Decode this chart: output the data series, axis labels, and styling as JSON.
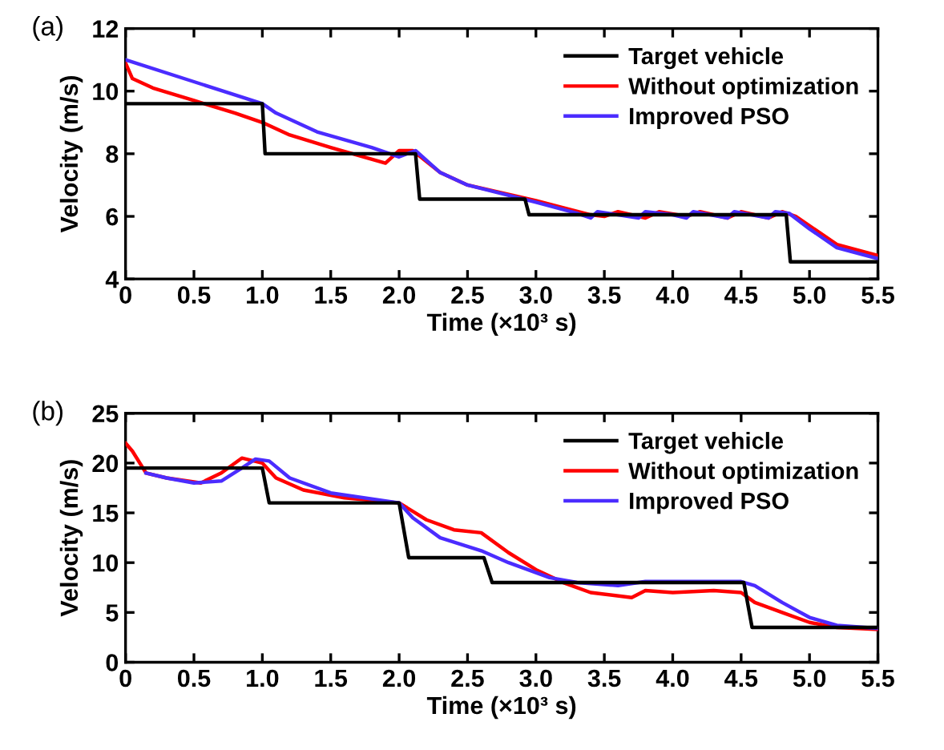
{
  "chart_data": [
    {
      "type": "line",
      "annotations": [
        "(a)"
      ],
      "xlabel": "Time (×10³ s)",
      "ylabel": "Velocity (m/s)",
      "xlim": [
        0,
        5.5
      ],
      "ylim": [
        4,
        12
      ],
      "xticks": [
        0,
        0.5,
        {
          "value": 1,
          "label": "1.0"
        },
        1.5,
        {
          "value": 2,
          "label": "2.0"
        },
        2.5,
        {
          "value": 3,
          "label": "3.0"
        },
        3.5,
        {
          "value": 4,
          "label": "4.0"
        },
        4.5,
        {
          "value": 5,
          "label": "5.0"
        },
        5.5
      ],
      "yticks": [
        4,
        6,
        8,
        10,
        12
      ],
      "grid": false,
      "legend": "top right",
      "series": [
        {
          "name": "Target vehicle",
          "color": "#000000",
          "x": [
            0,
            1.0,
            1.02,
            2.12,
            2.15,
            2.92,
            2.95,
            4.83,
            4.86,
            5.5
          ],
          "values": [
            9.6,
            9.6,
            8.0,
            8.0,
            6.55,
            6.55,
            6.05,
            6.05,
            4.55,
            4.55
          ]
        },
        {
          "name": "Without optimization",
          "color": "#ff0000",
          "x": [
            0,
            0.05,
            0.2,
            0.5,
            0.8,
            1.0,
            1.2,
            1.5,
            1.9,
            2.0,
            2.1,
            2.3,
            2.5,
            3.0,
            3.4,
            3.5,
            3.6,
            3.8,
            3.9,
            4.1,
            4.2,
            4.4,
            4.5,
            4.7,
            4.8,
            4.9,
            5.2,
            5.5
          ],
          "values": [
            10.9,
            10.4,
            10.1,
            9.7,
            9.3,
            9.0,
            8.6,
            8.2,
            7.7,
            8.1,
            8.1,
            7.4,
            7.0,
            6.5,
            6.05,
            6.0,
            6.15,
            5.95,
            6.15,
            6.0,
            6.15,
            5.95,
            6.15,
            5.95,
            6.15,
            6.0,
            5.1,
            4.75
          ]
        },
        {
          "name": "Improved PSO",
          "color": "#4b2cff",
          "x": [
            0,
            0.5,
            1.0,
            1.1,
            1.4,
            1.8,
            2.0,
            2.12,
            2.3,
            2.5,
            3.0,
            3.3,
            3.4,
            3.45,
            3.6,
            3.75,
            3.8,
            4.0,
            4.1,
            4.15,
            4.4,
            4.45,
            4.7,
            4.75,
            4.85,
            5.0,
            5.2,
            5.5
          ],
          "values": [
            11.0,
            10.3,
            9.6,
            9.3,
            8.7,
            8.2,
            7.9,
            8.1,
            7.4,
            7.0,
            6.45,
            6.1,
            5.95,
            6.15,
            6.05,
            5.95,
            6.15,
            6.05,
            5.95,
            6.15,
            5.95,
            6.15,
            5.95,
            6.15,
            6.1,
            5.6,
            5.0,
            4.65
          ]
        }
      ]
    },
    {
      "type": "line",
      "annotations": [
        "(b)"
      ],
      "xlabel": "Time (×10³ s)",
      "ylabel": "Velocity (m/s)",
      "xlim": [
        0,
        5.5
      ],
      "ylim": [
        0,
        25
      ],
      "xticks": [
        0,
        0.5,
        {
          "value": 1,
          "label": "1.0"
        },
        1.5,
        {
          "value": 2,
          "label": "2.0"
        },
        2.5,
        {
          "value": 3,
          "label": "3.0"
        },
        3.5,
        {
          "value": 4,
          "label": "4.0"
        },
        4.5,
        {
          "value": 5,
          "label": "5.0"
        },
        5.5
      ],
      "yticks": [
        0,
        5,
        10,
        15,
        20,
        25
      ],
      "grid": false,
      "legend": "top right",
      "series": [
        {
          "name": "Target vehicle",
          "color": "#000000",
          "x": [
            0,
            1.0,
            1.05,
            2.0,
            2.07,
            2.62,
            2.68,
            4.52,
            4.58,
            5.5
          ],
          "values": [
            19.5,
            19.5,
            16,
            16,
            10.5,
            10.5,
            8,
            8,
            3.5,
            3.5
          ]
        },
        {
          "name": "Without optimization",
          "color": "#ff0000",
          "x": [
            0,
            0.05,
            0.15,
            0.3,
            0.55,
            0.7,
            0.85,
            1.0,
            1.1,
            1.3,
            1.6,
            2.0,
            2.2,
            2.4,
            2.6,
            2.8,
            3.0,
            3.2,
            3.4,
            3.7,
            3.8,
            4.0,
            4.3,
            4.5,
            4.6,
            4.8,
            5.0,
            5.2,
            5.5
          ],
          "values": [
            22,
            21.2,
            19,
            18.5,
            18,
            19,
            20.5,
            20,
            18.5,
            17.3,
            16.5,
            16,
            14.3,
            13.3,
            13.0,
            11.0,
            9.3,
            8.0,
            7.0,
            6.5,
            7.2,
            7.0,
            7.2,
            7.0,
            6.0,
            5.0,
            4.0,
            3.5,
            3.3
          ]
        },
        {
          "name": "Improved PSO",
          "color": "#4b2cff",
          "x": [
            0.15,
            0.3,
            0.5,
            0.7,
            0.85,
            0.95,
            1.05,
            1.2,
            1.5,
            2.0,
            2.1,
            2.3,
            2.6,
            2.8,
            3.1,
            3.3,
            3.6,
            3.8,
            4.5,
            4.6,
            4.8,
            5.0,
            5.2,
            5.5
          ],
          "values": [
            19,
            18.5,
            18,
            18.2,
            19.5,
            20.4,
            20.2,
            18.5,
            17,
            16,
            14.5,
            12.5,
            11.2,
            10.0,
            8.5,
            8.0,
            7.7,
            8.1,
            8.1,
            7.7,
            6.0,
            4.5,
            3.7,
            3.4
          ]
        }
      ]
    }
  ]
}
